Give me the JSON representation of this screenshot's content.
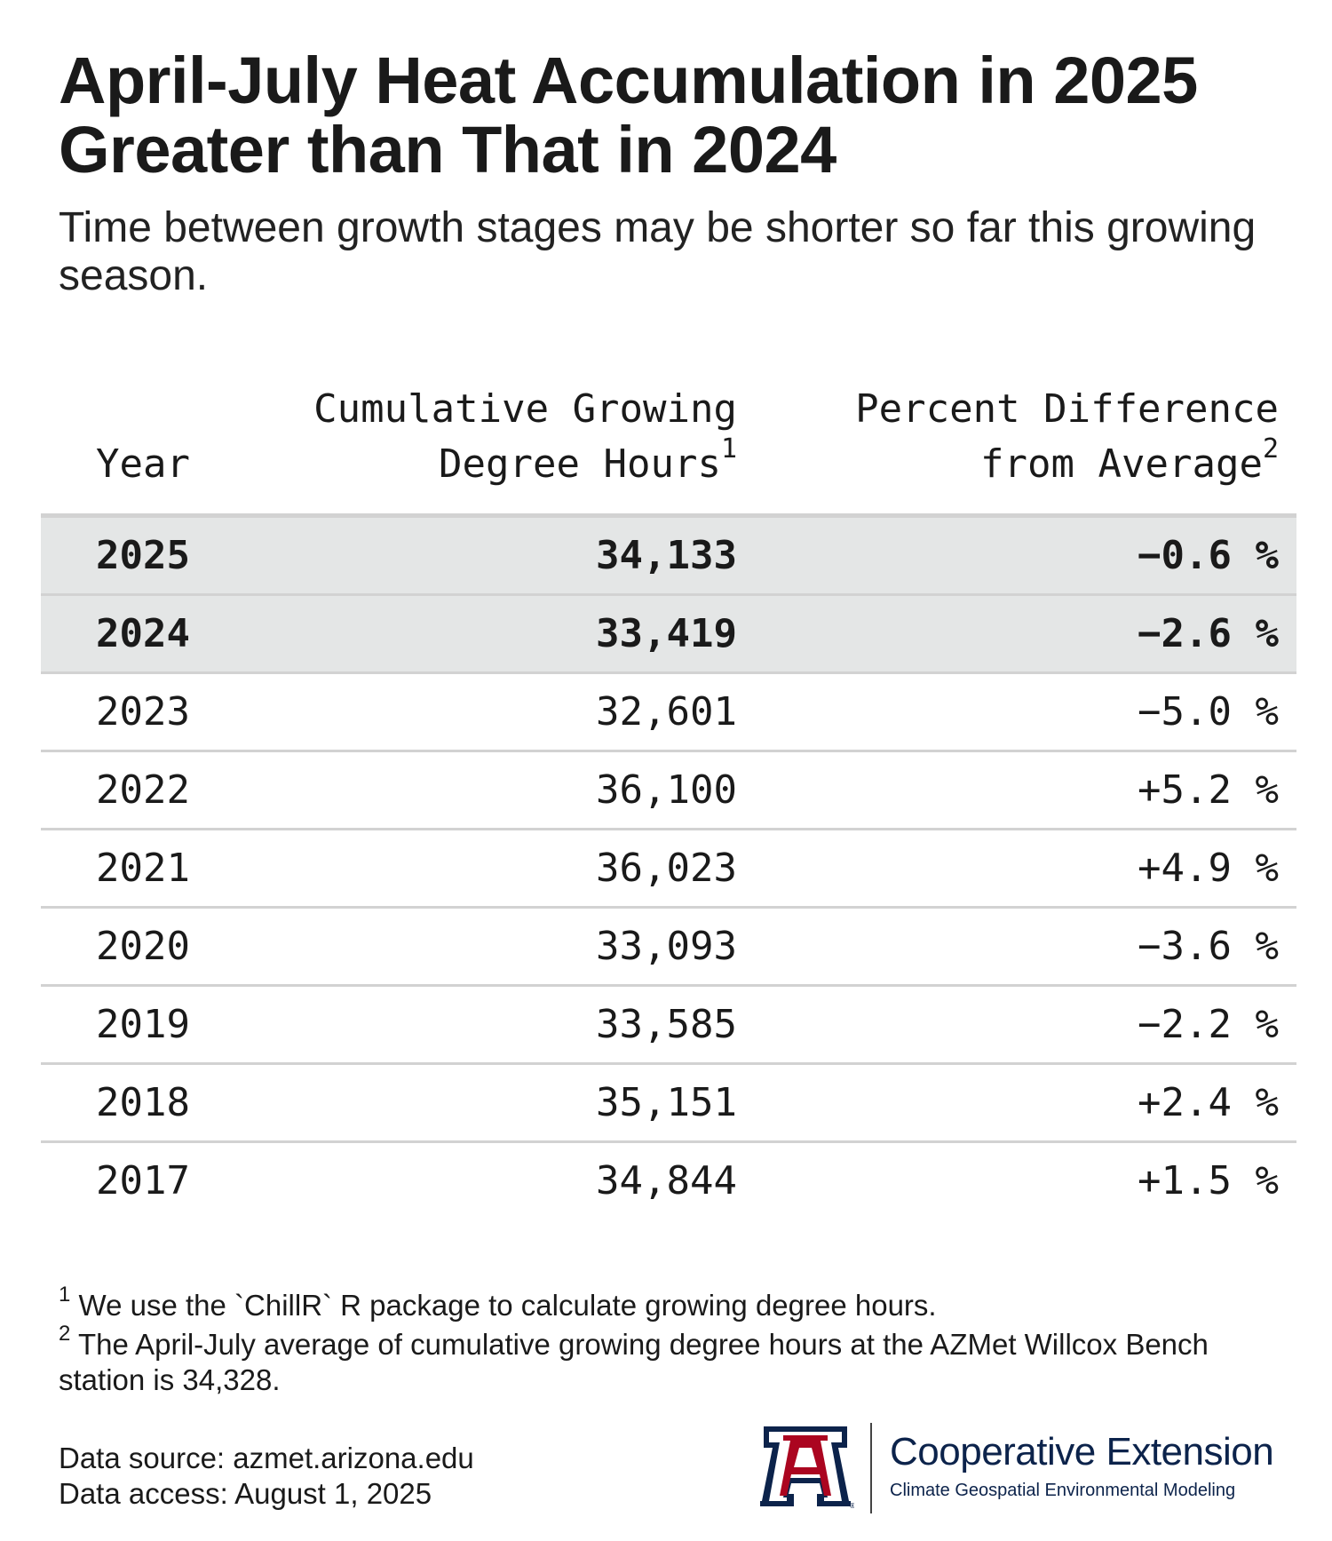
{
  "header": {
    "title": "April-July Heat Accumulation in 2025 Greater than That in 2024",
    "subtitle": "Time between growth stages may be shorter so far this growing season."
  },
  "table": {
    "col_year": "Year",
    "col_gdh_line1": "Cumulative Growing",
    "col_gdh_line2": "Degree Hours",
    "col_gdh_note": "1",
    "col_pct_line1": "Percent Difference",
    "col_pct_line2": "from Average",
    "col_pct_note": "2"
  },
  "chart_data": {
    "type": "table",
    "title": "April-July Heat Accumulation in 2025 Greater than That in 2024",
    "subtitle": "Time between growth stages may be shorter so far this growing season.",
    "columns": [
      "Year",
      "Cumulative Growing Degree Hours",
      "Percent Difference from Average"
    ],
    "rows": [
      {
        "year": "2025",
        "gdh": "34,133",
        "pct": "−0.6 %",
        "highlight": true
      },
      {
        "year": "2024",
        "gdh": "33,419",
        "pct": "−2.6 %",
        "highlight": true
      },
      {
        "year": "2023",
        "gdh": "32,601",
        "pct": "−5.0 %",
        "highlight": false
      },
      {
        "year": "2022",
        "gdh": "36,100",
        "pct": "+5.2 %",
        "highlight": false
      },
      {
        "year": "2021",
        "gdh": "36,023",
        "pct": "+4.9 %",
        "highlight": false
      },
      {
        "year": "2020",
        "gdh": "33,093",
        "pct": "−3.6 %",
        "highlight": false
      },
      {
        "year": "2019",
        "gdh": "33,585",
        "pct": "−2.2 %",
        "highlight": false
      },
      {
        "year": "2018",
        "gdh": "35,151",
        "pct": "+2.4 %",
        "highlight": false
      },
      {
        "year": "2017",
        "gdh": "34,844",
        "pct": "+1.5 %",
        "highlight": false
      }
    ]
  },
  "footnotes": {
    "note1_marker": "1",
    "note1_text": "We use the `ChillR` R package to calculate growing degree hours.",
    "note2_marker": "2",
    "note2_text": "The April-July average of cumulative growing degree hours at the AZMet Willcox Bench station is 34,328."
  },
  "source": {
    "line1": "Data source: azmet.arizona.edu",
    "line2": "Data access: August 1, 2025"
  },
  "logo": {
    "main": "Cooperative Extension",
    "sub": "Climate Geospatial Environmental Modeling",
    "navy": "#0c234b",
    "red": "#ab0520"
  }
}
